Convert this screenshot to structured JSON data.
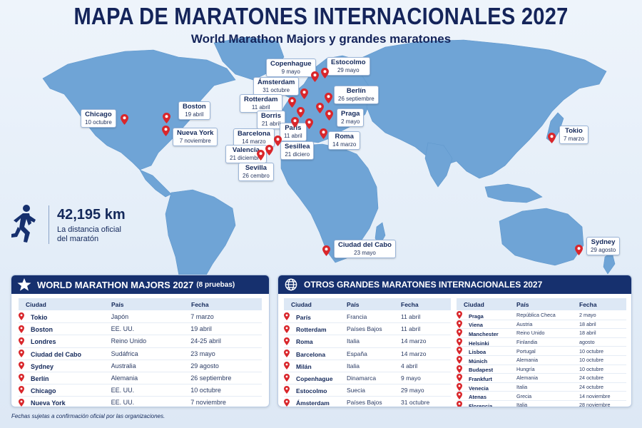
{
  "header": {
    "title": "MAPA DE MARATONES INTERNACIONALES 2027",
    "subtitle": "World Marathon Majors y grandes maratones"
  },
  "colors": {
    "ocean_bg": "#e7f0fa",
    "land": "#6fa4d6",
    "pin": "#d9262b",
    "panel_header": "#16306e",
    "text_dark": "#13285a"
  },
  "map_pins": [
    {
      "id": "chicago",
      "city": "Chicago",
      "date": "10 octubre"
    },
    {
      "id": "boston",
      "city": "Boston",
      "date": "19 abril"
    },
    {
      "id": "nuevayork",
      "city": "Nueva York",
      "date": "7 noviembre"
    },
    {
      "id": "copenhague",
      "city": "Copenhague",
      "date": "9 mayo"
    },
    {
      "id": "estocolmo",
      "city": "Estocolmo",
      "date": "29 mayo"
    },
    {
      "id": "amsterdam",
      "city": "Ámsterdam",
      "date": "31 octubre"
    },
    {
      "id": "rotterdam",
      "city": "Rotterdam",
      "date": "11 abril"
    },
    {
      "id": "berlin",
      "city": "Berlín",
      "date": "26 septiembre"
    },
    {
      "id": "borris",
      "city": "Borris",
      "date": "21 abril"
    },
    {
      "id": "praga",
      "city": "Praga",
      "date": "2 mayo"
    },
    {
      "id": "paris",
      "city": "París",
      "date": "11 abril"
    },
    {
      "id": "barcelona",
      "city": "Barcelona",
      "date": "14 marzo"
    },
    {
      "id": "roma",
      "city": "Roma",
      "date": "14 marzo"
    },
    {
      "id": "sesillea",
      "city": "Sesillea",
      "date": "21 diciero"
    },
    {
      "id": "valencia",
      "city": "Valencia",
      "date": "21 diciembre"
    },
    {
      "id": "sevilla",
      "city": "Sevilla",
      "date": "26 cembro"
    },
    {
      "id": "tokio",
      "city": "Tokio",
      "date": "7 marzo"
    },
    {
      "id": "ciudadcabo",
      "city": "Ciudad del Cabo",
      "date": "23 mayo"
    },
    {
      "id": "sydney",
      "city": "Sydney",
      "date": "29 agosto"
    }
  ],
  "distance": {
    "value": "42,195 km",
    "caption_line1": "La distancia oficial",
    "caption_line2": "del maratón",
    "icon": "runner-icon"
  },
  "majors_panel": {
    "title": "WORLD MARATHON MAJORS 2027",
    "count_note": "(8 pruebas)",
    "icon": "star-icon",
    "columns": [
      "Ciudad",
      "País",
      "Fecha"
    ],
    "rows": [
      {
        "city": "Tokio",
        "country": "Japón",
        "date": "7 marzo"
      },
      {
        "city": "Boston",
        "country": "EE. UU.",
        "date": "19 abril"
      },
      {
        "city": "Londres",
        "country": "Reino Unido",
        "date": "24-25 abril"
      },
      {
        "city": "Ciudad del Cabo",
        "country": "Sudáfrica",
        "date": "23 mayo"
      },
      {
        "city": "Sydney",
        "country": "Australia",
        "date": "29 agosto"
      },
      {
        "city": "Berlín",
        "country": "Alemania",
        "date": "26 septiembre"
      },
      {
        "city": "Chicago",
        "country": "EE. UU.",
        "date": "10 octubre"
      },
      {
        "city": "Nueva York",
        "country": "EE. UU.",
        "date": "7 noviembre"
      }
    ]
  },
  "others_panel": {
    "title": "OTROS GRANDES MARATONES INTERNACIONALES 2027",
    "icon": "globe-icon",
    "columns": [
      "Ciudad",
      "País",
      "Fecha"
    ],
    "left_rows": [
      {
        "city": "París",
        "country": "Francia",
        "date": "11 abril"
      },
      {
        "city": "Rotterdam",
        "country": "Países Bajos",
        "date": "11 abril"
      },
      {
        "city": "Roma",
        "country": "Italia",
        "date": "14 marzo"
      },
      {
        "city": "Barcelona",
        "country": "España",
        "date": "14 marzo"
      },
      {
        "city": "Milán",
        "country": "Italia",
        "date": "4 abril"
      },
      {
        "city": "Copenhague",
        "country": "Dinamarca",
        "date": "9 mayo"
      },
      {
        "city": "Estocolmo",
        "country": "Suecia",
        "date": "29 mayo"
      },
      {
        "city": "Ámsterdam",
        "country": "Países Bajos",
        "date": "31 octubre"
      }
    ],
    "right_rows": [
      {
        "city": "Praga",
        "country": "República Checa",
        "date": "2 mayo"
      },
      {
        "city": "Viena",
        "country": "Austria",
        "date": "18 abril"
      },
      {
        "city": "Manchester",
        "country": "Reino Unido",
        "date": "18 abril"
      },
      {
        "city": "Helsinki",
        "country": "Finlandia",
        "date": "agosto"
      },
      {
        "city": "Lisboa",
        "country": "Portugal",
        "date": "10 octubre"
      },
      {
        "city": "Múnich",
        "country": "Alemania",
        "date": "10 octubre"
      },
      {
        "city": "Budapest",
        "country": "Hungría",
        "date": "10 octubre"
      },
      {
        "city": "Frankfurt",
        "country": "Alemania",
        "date": "24 octubre"
      },
      {
        "city": "Venecia",
        "country": "Italia",
        "date": "24 octubre"
      },
      {
        "city": "Atenas",
        "country": "Grecia",
        "date": "14 noviembre"
      },
      {
        "city": "Florencia",
        "country": "Italia",
        "date": "28 noviembre"
      }
    ]
  },
  "footnote": "Fechas sujetas a confirmación oficial por las organizaciones."
}
